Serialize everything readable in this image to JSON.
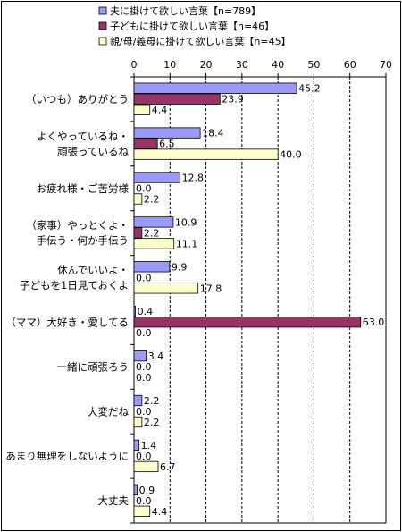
{
  "chart_data": {
    "type": "bar",
    "orientation": "horizontal",
    "xlim": [
      0,
      70
    ],
    "x_ticks": [
      "0",
      "10",
      "20",
      "30",
      "40",
      "50",
      "60",
      "70"
    ],
    "x_axis_position": "top",
    "grid": "vertical dashed",
    "legend_position": "top",
    "categories": [
      [
        "（いつも）ありがとう"
      ],
      [
        "よくやっているね・",
        "頑張っているね"
      ],
      [
        "お疲れ様・ご苦労様"
      ],
      [
        "（家事）やっとくよ・",
        "手伝う・何か手伝う"
      ],
      [
        "休んでいいよ・",
        "子どもを1日見ておくよ"
      ],
      [
        "（ママ）大好き・愛してる"
      ],
      [
        "一緒に頑張ろう"
      ],
      [
        "大変だね"
      ],
      [
        "あまり無理をしないように"
      ],
      [
        "大丈夫"
      ]
    ],
    "series": [
      {
        "name": "夫に掛けて欲しい言葉【n=789】",
        "color": "#9999ff",
        "values": [
          45.2,
          18.4,
          12.8,
          10.9,
          9.9,
          0.4,
          3.4,
          2.2,
          1.4,
          0.9
        ],
        "labels": [
          "45.2",
          "18.4",
          "12.8",
          "10.9",
          "9.9",
          "0.4",
          "3.4",
          "2.2",
          "1.4",
          "0.9"
        ]
      },
      {
        "name": "子どもに掛けて欲しい言葉【n=46】",
        "color": "#993366",
        "values": [
          23.9,
          6.5,
          0.0,
          2.2,
          0.0,
          63.0,
          0.0,
          0.0,
          0.0,
          0.0
        ],
        "labels": [
          "23.9",
          "6.5",
          "0.0",
          "2.2",
          "0.0",
          "63.0",
          "0.0",
          "0.0",
          "0.0",
          "0.0"
        ]
      },
      {
        "name": "親/母/義母に掛けて欲しい言葉【n=45】",
        "color": "#ffffcc",
        "values": [
          4.4,
          40.0,
          2.2,
          11.1,
          17.8,
          0.0,
          0.0,
          2.2,
          6.7,
          4.4
        ],
        "labels": [
          "4.4",
          "40.0",
          "2.2",
          "11.1",
          "17.8",
          "0.0",
          "0.0",
          "2.2",
          "6.7",
          "4.4"
        ]
      }
    ]
  }
}
